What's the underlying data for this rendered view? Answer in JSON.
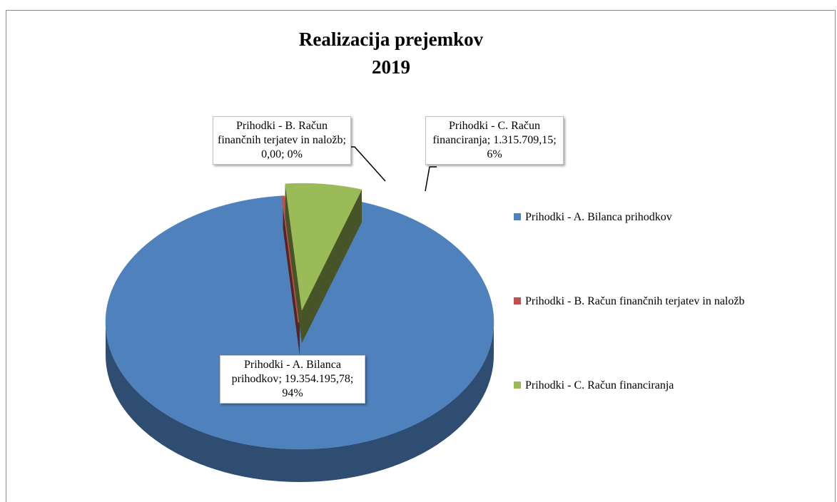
{
  "chart_data": {
    "type": "pie",
    "title": [
      "Realizacija prejemkov",
      "2019"
    ],
    "categories": [
      "Prihodki - A. Bilanca prihodkov",
      "Prihodki - B. Račun finančnih terjatev in naložb",
      "Prihodki - C. Račun financiranja"
    ],
    "values": [
      19354195.78,
      0,
      1315709.15
    ],
    "value_labels": [
      "19.354.195,78",
      "0,00",
      "1.315.709,15"
    ],
    "percent_labels": [
      "94%",
      "0%",
      "6%"
    ],
    "label_separator": "; ",
    "colors": [
      "#4f81bd",
      "#c0504d",
      "#9bbb59"
    ],
    "explode": [
      false,
      false,
      true
    ],
    "legend": "right"
  }
}
